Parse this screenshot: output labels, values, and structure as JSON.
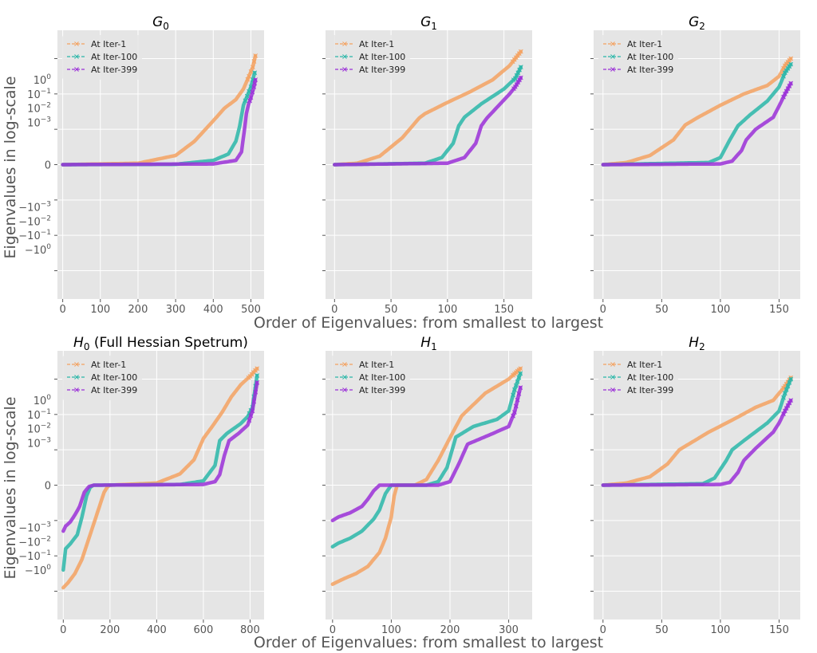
{
  "figure": {
    "xlabel": "Order of Eigenvalues: from smallest to largest",
    "ylabel": "Eigenvalues in log-scale"
  },
  "y_ticks": [
    "10^0",
    "10^-1",
    "10^-2",
    "10^-3",
    "0",
    "-10^-3",
    "-10^-2",
    "-10^-1",
    "-10^0"
  ],
  "chart_data": [
    {
      "type": "line",
      "title_base": "G",
      "title_sub": "0",
      "title_suffix": "",
      "xlim": [
        -14,
        535
      ],
      "xticks": [
        0,
        100,
        200,
        300,
        400,
        500
      ],
      "ylim": [
        -1.9,
        1.9
      ],
      "legend": [
        "At Iter-1",
        "At Iter-100",
        "At Iter-399"
      ],
      "series": [
        {
          "name": "At Iter-1",
          "color": "#f4a261",
          "x": [
            0,
            200,
            300,
            350,
            400,
            430,
            460,
            480,
            495,
            505,
            512
          ],
          "y": [
            0,
            0.02,
            0.13,
            0.33,
            0.62,
            0.8,
            0.92,
            1.07,
            1.25,
            1.38,
            1.54
          ]
        },
        {
          "name": "At Iter-100",
          "color": "#2ab7a9",
          "x": [
            0,
            300,
            400,
            440,
            460,
            470,
            480,
            490,
            500,
            510
          ],
          "y": [
            0,
            0.005,
            0.06,
            0.15,
            0.33,
            0.54,
            0.84,
            0.97,
            1.1,
            1.3
          ]
        },
        {
          "name": "At Iter-399",
          "color": "#9b30d8",
          "x": [
            0,
            400,
            460,
            475,
            482,
            488,
            494,
            500,
            508,
            512
          ],
          "y": [
            0,
            0.01,
            0.06,
            0.18,
            0.46,
            0.72,
            0.86,
            0.95,
            1.1,
            1.2
          ]
        }
      ]
    },
    {
      "type": "line",
      "title_base": "G",
      "title_sub": "1",
      "title_suffix": "",
      "xlim": [
        -8,
        175
      ],
      "xticks": [
        0,
        50,
        100,
        150
      ],
      "ylim": [
        -1.9,
        1.9
      ],
      "legend": [
        "At Iter-1",
        "At Iter-100",
        "At Iter-399"
      ],
      "series": [
        {
          "name": "At Iter-1",
          "color": "#f4a261",
          "x": [
            0,
            20,
            40,
            60,
            75,
            80,
            100,
            120,
            140,
            155,
            165
          ],
          "y": [
            0,
            0.02,
            0.12,
            0.38,
            0.66,
            0.72,
            0.88,
            1.03,
            1.2,
            1.4,
            1.6
          ]
        },
        {
          "name": "At Iter-100",
          "color": "#2ab7a9",
          "x": [
            0,
            80,
            95,
            105,
            110,
            115,
            130,
            150,
            160,
            165
          ],
          "y": [
            0,
            0.02,
            0.1,
            0.3,
            0.55,
            0.67,
            0.86,
            1.07,
            1.22,
            1.38
          ]
        },
        {
          "name": "At Iter-399",
          "color": "#9b30d8",
          "x": [
            0,
            100,
            115,
            125,
            130,
            135,
            145,
            155,
            160,
            165
          ],
          "y": [
            0,
            0.02,
            0.1,
            0.3,
            0.55,
            0.66,
            0.83,
            1.0,
            1.1,
            1.23
          ]
        }
      ]
    },
    {
      "type": "line",
      "title_base": "G",
      "title_sub": "2",
      "title_suffix": "",
      "xlim": [
        -8,
        168
      ],
      "xticks": [
        0,
        50,
        100,
        150
      ],
      "ylim": [
        -1.9,
        1.9
      ],
      "legend": [
        "At Iter-1",
        "At Iter-100",
        "At Iter-399"
      ],
      "series": [
        {
          "name": "At Iter-1",
          "color": "#f4a261",
          "x": [
            0,
            20,
            40,
            60,
            70,
            80,
            100,
            120,
            140,
            150,
            155,
            160
          ],
          "y": [
            0,
            0.03,
            0.13,
            0.35,
            0.56,
            0.66,
            0.84,
            1.0,
            1.12,
            1.25,
            1.4,
            1.5
          ]
        },
        {
          "name": "At Iter-100",
          "color": "#2ab7a9",
          "x": [
            0,
            90,
            100,
            108,
            115,
            125,
            140,
            150,
            155,
            160
          ],
          "y": [
            0,
            0.03,
            0.1,
            0.35,
            0.55,
            0.7,
            0.9,
            1.1,
            1.3,
            1.42
          ]
        },
        {
          "name": "At Iter-399",
          "color": "#9b30d8",
          "x": [
            0,
            100,
            110,
            118,
            122,
            130,
            145,
            150,
            155,
            160
          ],
          "y": [
            0,
            0.01,
            0.05,
            0.2,
            0.35,
            0.5,
            0.67,
            0.83,
            1.0,
            1.15
          ]
        }
      ]
    },
    {
      "type": "line",
      "title_base": "H",
      "title_sub": "0",
      "title_suffix": " (Full Hessian Spetrum)",
      "xlim": [
        -25,
        860
      ],
      "xticks": [
        0,
        200,
        400,
        600,
        800
      ],
      "ylim": [
        -1.9,
        1.9
      ],
      "legend": [
        "At Iter-1",
        "At Iter-100",
        "At Iter-399"
      ],
      "series": [
        {
          "name": "At Iter-1",
          "color": "#f4a261",
          "x": [
            0,
            20,
            50,
            80,
            110,
            140,
            160,
            175,
            190,
            200,
            400,
            500,
            560,
            600,
            640,
            680,
            720,
            760,
            800,
            830
          ],
          "y": [
            -1.45,
            -1.38,
            -1.25,
            -1.05,
            -0.75,
            -0.45,
            -0.25,
            -0.1,
            -0.02,
            0,
            0.03,
            0.16,
            0.36,
            0.66,
            0.84,
            1.03,
            1.25,
            1.42,
            1.54,
            1.65
          ]
        },
        {
          "name": "At Iter-100",
          "color": "#2ab7a9",
          "x": [
            0,
            10,
            30,
            60,
            80,
            100,
            115,
            130,
            150,
            500,
            600,
            650,
            670,
            700,
            760,
            790,
            810,
            830
          ],
          "y": [
            -1.2,
            -0.9,
            -0.83,
            -0.7,
            -0.45,
            -0.15,
            -0.03,
            0,
            0,
            0.01,
            0.06,
            0.28,
            0.63,
            0.73,
            0.87,
            0.97,
            1.1,
            1.55
          ]
        },
        {
          "name": "At Iter-399",
          "color": "#9b30d8",
          "x": [
            0,
            10,
            30,
            50,
            70,
            90,
            110,
            130,
            150,
            600,
            650,
            670,
            690,
            710,
            750,
            790,
            810,
            830
          ],
          "y": [
            -0.65,
            -0.58,
            -0.52,
            -0.42,
            -0.3,
            -0.1,
            -0.02,
            0,
            0,
            0.01,
            0.05,
            0.15,
            0.42,
            0.63,
            0.73,
            0.85,
            1.05,
            1.45
          ]
        }
      ]
    },
    {
      "type": "line",
      "title_base": "H",
      "title_sub": "1",
      "title_suffix": "",
      "xlim": [
        -12,
        340
      ],
      "xticks": [
        0,
        100,
        200,
        300
      ],
      "ylim": [
        -1.9,
        1.9
      ],
      "legend": [
        "At Iter-1",
        "At Iter-100",
        "At Iter-399"
      ],
      "series": [
        {
          "name": "At Iter-1",
          "color": "#f4a261",
          "x": [
            0,
            20,
            40,
            60,
            80,
            90,
            100,
            105,
            110,
            140,
            160,
            180,
            200,
            220,
            260,
            300,
            320
          ],
          "y": [
            -1.4,
            -1.32,
            -1.25,
            -1.15,
            -0.95,
            -0.75,
            -0.45,
            -0.15,
            0,
            0,
            0.08,
            0.35,
            0.67,
            0.98,
            1.3,
            1.5,
            1.65
          ]
        },
        {
          "name": "At Iter-100",
          "color": "#2ab7a9",
          "x": [
            0,
            10,
            30,
            50,
            70,
            80,
            90,
            100,
            160,
            180,
            195,
            210,
            240,
            280,
            300,
            310,
            320
          ],
          "y": [
            -0.87,
            -0.82,
            -0.75,
            -0.65,
            -0.48,
            -0.35,
            -0.12,
            0,
            0,
            0.05,
            0.25,
            0.68,
            0.83,
            0.93,
            1.05,
            1.35,
            1.58
          ]
        },
        {
          "name": "At Iter-399",
          "color": "#9b30d8",
          "x": [
            0,
            10,
            30,
            50,
            60,
            70,
            80,
            100,
            180,
            200,
            215,
            230,
            270,
            300,
            310,
            320
          ],
          "y": [
            -0.5,
            -0.45,
            -0.39,
            -0.3,
            -0.2,
            -0.08,
            0,
            0,
            0,
            0.05,
            0.3,
            0.58,
            0.72,
            0.83,
            1.03,
            1.38
          ]
        }
      ]
    },
    {
      "type": "line",
      "title_base": "H",
      "title_sub": "2",
      "title_suffix": "",
      "xlim": [
        -8,
        168
      ],
      "xticks": [
        0,
        50,
        100,
        150
      ],
      "ylim": [
        -1.9,
        1.9
      ],
      "legend": [
        "At Iter-1",
        "At Iter-100",
        "At Iter-399"
      ],
      "series": [
        {
          "name": "At Iter-1",
          "color": "#f4a261",
          "x": [
            0,
            20,
            40,
            55,
            65,
            75,
            90,
            110,
            130,
            145,
            150,
            155,
            160
          ],
          "y": [
            0,
            0.03,
            0.12,
            0.3,
            0.5,
            0.6,
            0.75,
            0.92,
            1.1,
            1.2,
            1.3,
            1.4,
            1.52
          ]
        },
        {
          "name": "At Iter-100",
          "color": "#2ab7a9",
          "x": [
            0,
            85,
            95,
            105,
            110,
            120,
            140,
            150,
            155,
            160
          ],
          "y": [
            0,
            0.02,
            0.1,
            0.35,
            0.5,
            0.63,
            0.88,
            1.05,
            1.3,
            1.5
          ]
        },
        {
          "name": "At Iter-399",
          "color": "#9b30d8",
          "x": [
            0,
            100,
            108,
            115,
            120,
            130,
            145,
            150,
            155,
            160
          ],
          "y": [
            0,
            0.01,
            0.04,
            0.18,
            0.35,
            0.52,
            0.75,
            0.88,
            1.05,
            1.2
          ]
        }
      ]
    }
  ]
}
